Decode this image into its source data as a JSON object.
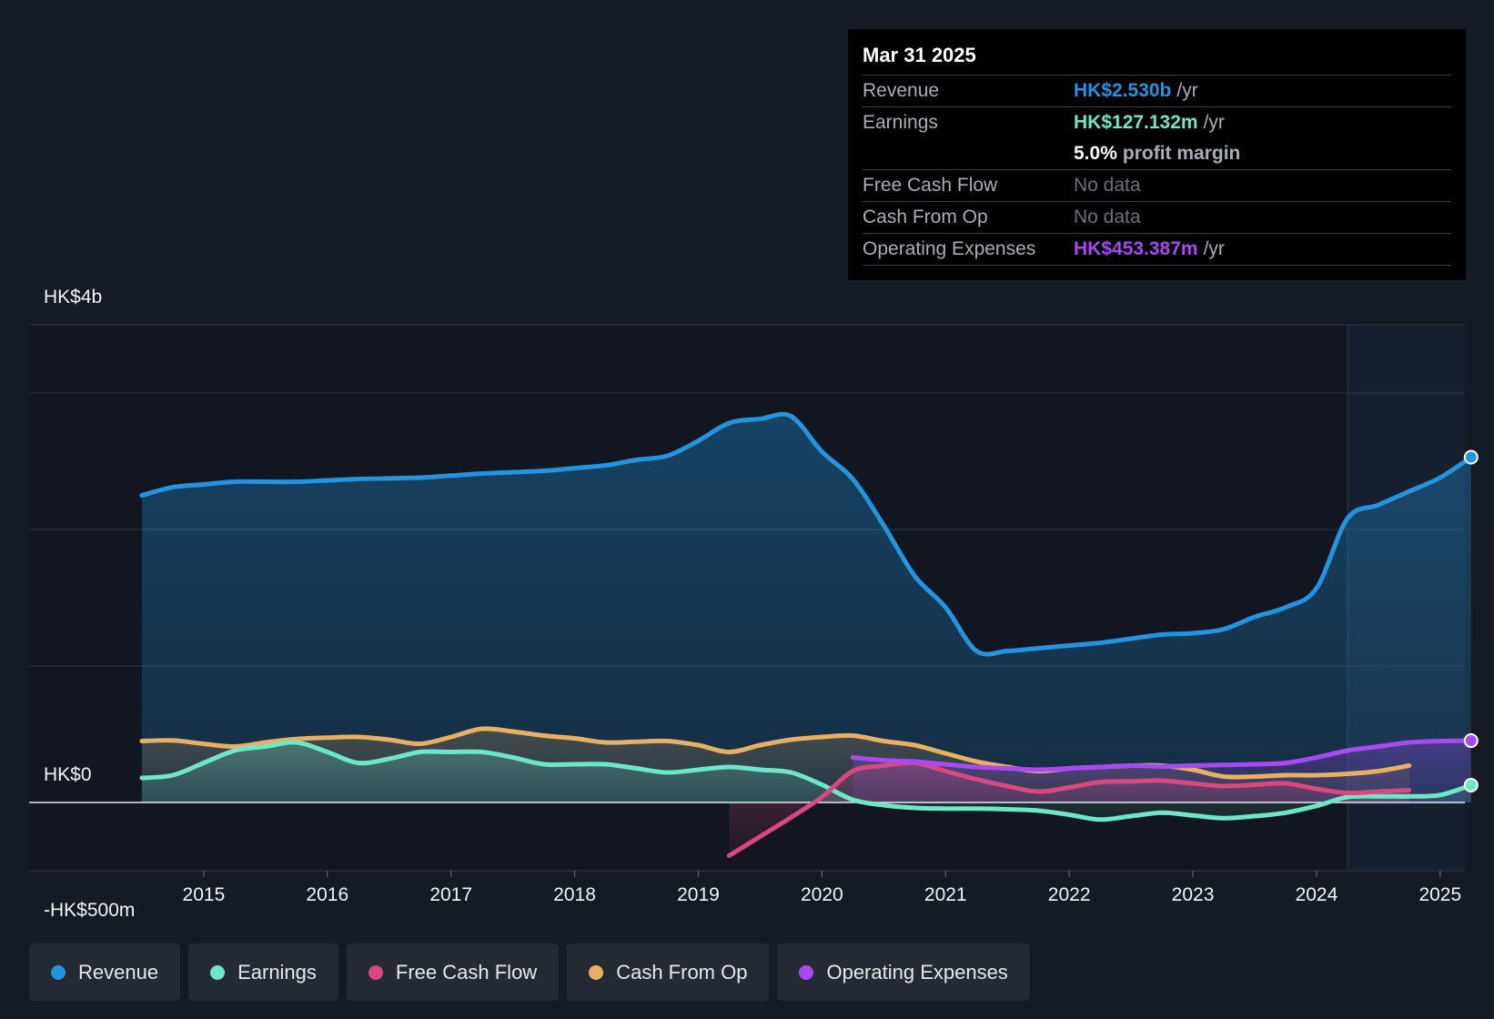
{
  "tooltip": {
    "date": "Mar 31 2025",
    "revenue_label": "Revenue",
    "revenue_value": "HK$2.530b",
    "earnings_label": "Earnings",
    "earnings_value": "HK$127.132m",
    "margin_value": "5.0%",
    "margin_label": "profit margin",
    "fcf_label": "Free Cash Flow",
    "fcf_value": "No data",
    "cfo_label": "Cash From Op",
    "cfo_value": "No data",
    "opex_label": "Operating Expenses",
    "opex_value": "HK$453.387m",
    "unit": "/yr"
  },
  "colors": {
    "background": "#151b24",
    "revenue": "#2394df",
    "earnings": "#6ee7c8",
    "fcf": "#d9497f",
    "cfo": "#e8b063",
    "opex": "#a949f5"
  },
  "legend": [
    {
      "label": "Revenue",
      "color": "#2394df"
    },
    {
      "label": "Earnings",
      "color": "#6ee7c8"
    },
    {
      "label": "Free Cash Flow",
      "color": "#d9497f"
    },
    {
      "label": "Cash From Op",
      "color": "#e8b063"
    },
    {
      "label": "Operating Expenses",
      "color": "#a949f5"
    }
  ],
  "chart_data": {
    "type": "line",
    "title": "",
    "xlabel": "",
    "ylabel": "",
    "ylim": [
      -500,
      3500
    ],
    "xlim": [
      2014.0,
      2025.2
    ],
    "y_labels": [
      {
        "value": 3500,
        "text": "HK$4b"
      },
      {
        "value": 0,
        "text": "HK$0"
      },
      {
        "value": -500,
        "text": "-HK$500m"
      }
    ],
    "x_ticks": [
      {
        "value": 2015,
        "text": "2015"
      },
      {
        "value": 2016,
        "text": "2016"
      },
      {
        "value": 2017,
        "text": "2017"
      },
      {
        "value": 2018,
        "text": "2018"
      },
      {
        "value": 2019,
        "text": "2019"
      },
      {
        "value": 2020,
        "text": "2020"
      },
      {
        "value": 2021,
        "text": "2021"
      },
      {
        "value": 2022,
        "text": "2022"
      },
      {
        "value": 2023,
        "text": "2023"
      },
      {
        "value": 2024,
        "text": "2024"
      },
      {
        "value": 2025,
        "text": "2025"
      }
    ],
    "gridlines": [
      3500,
      3000,
      2000,
      1000,
      -500
    ],
    "forecast_start": 2024.25,
    "series": [
      {
        "name": "Revenue",
        "key": "revenue",
        "points": [
          [
            2014.5,
            2250
          ],
          [
            2014.75,
            2310
          ],
          [
            2015.0,
            2330
          ],
          [
            2015.25,
            2350
          ],
          [
            2015.5,
            2350
          ],
          [
            2015.75,
            2350
          ],
          [
            2016.0,
            2360
          ],
          [
            2016.25,
            2370
          ],
          [
            2016.5,
            2375
          ],
          [
            2016.75,
            2380
          ],
          [
            2017.0,
            2395
          ],
          [
            2017.25,
            2410
          ],
          [
            2017.5,
            2420
          ],
          [
            2017.75,
            2430
          ],
          [
            2018.0,
            2450
          ],
          [
            2018.25,
            2470
          ],
          [
            2018.5,
            2510
          ],
          [
            2018.75,
            2540
          ],
          [
            2019.0,
            2650
          ],
          [
            2019.25,
            2780
          ],
          [
            2019.5,
            2810
          ],
          [
            2019.75,
            2830
          ],
          [
            2020.0,
            2570
          ],
          [
            2020.25,
            2370
          ],
          [
            2020.5,
            2030
          ],
          [
            2020.75,
            1660
          ],
          [
            2021.0,
            1430
          ],
          [
            2021.25,
            1110
          ],
          [
            2021.5,
            1110
          ],
          [
            2021.75,
            1130
          ],
          [
            2022.0,
            1150
          ],
          [
            2022.25,
            1170
          ],
          [
            2022.5,
            1200
          ],
          [
            2022.75,
            1230
          ],
          [
            2023.0,
            1240
          ],
          [
            2023.25,
            1270
          ],
          [
            2023.5,
            1360
          ],
          [
            2023.75,
            1430
          ],
          [
            2024.0,
            1570
          ],
          [
            2024.25,
            2080
          ],
          [
            2024.5,
            2180
          ],
          [
            2024.75,
            2280
          ],
          [
            2025.0,
            2380
          ],
          [
            2025.25,
            2530
          ]
        ]
      },
      {
        "name": "Earnings",
        "key": "earnings",
        "points": [
          [
            2014.5,
            180
          ],
          [
            2014.75,
            200
          ],
          [
            2015.0,
            290
          ],
          [
            2015.25,
            380
          ],
          [
            2015.5,
            410
          ],
          [
            2015.75,
            440
          ],
          [
            2016.0,
            370
          ],
          [
            2016.25,
            290
          ],
          [
            2016.5,
            320
          ],
          [
            2016.75,
            370
          ],
          [
            2017.0,
            370
          ],
          [
            2017.25,
            370
          ],
          [
            2017.5,
            330
          ],
          [
            2017.75,
            280
          ],
          [
            2018.0,
            280
          ],
          [
            2018.25,
            280
          ],
          [
            2018.5,
            250
          ],
          [
            2018.75,
            220
          ],
          [
            2019.0,
            240
          ],
          [
            2019.25,
            260
          ],
          [
            2019.5,
            240
          ],
          [
            2019.75,
            220
          ],
          [
            2020.0,
            130
          ],
          [
            2020.25,
            20
          ],
          [
            2020.5,
            -20
          ],
          [
            2020.75,
            -40
          ],
          [
            2021.0,
            -45
          ],
          [
            2021.25,
            -45
          ],
          [
            2021.5,
            -50
          ],
          [
            2021.75,
            -60
          ],
          [
            2022.0,
            -90
          ],
          [
            2022.25,
            -125
          ],
          [
            2022.5,
            -100
          ],
          [
            2022.75,
            -75
          ],
          [
            2023.0,
            -95
          ],
          [
            2023.25,
            -115
          ],
          [
            2023.5,
            -100
          ],
          [
            2023.75,
            -75
          ],
          [
            2024.0,
            -25
          ],
          [
            2024.25,
            40
          ],
          [
            2024.5,
            45
          ],
          [
            2024.75,
            45
          ],
          [
            2025.0,
            55
          ],
          [
            2025.25,
            127
          ]
        ]
      },
      {
        "name": "Free Cash Flow",
        "key": "fcf",
        "points": [
          [
            2019.25,
            -390
          ],
          [
            2019.5,
            -250
          ],
          [
            2019.75,
            -110
          ],
          [
            2020.0,
            40
          ],
          [
            2020.25,
            230
          ],
          [
            2020.5,
            270
          ],
          [
            2020.75,
            290
          ],
          [
            2021.0,
            230
          ],
          [
            2021.25,
            170
          ],
          [
            2021.5,
            120
          ],
          [
            2021.75,
            80
          ],
          [
            2022.0,
            110
          ],
          [
            2022.25,
            150
          ],
          [
            2022.5,
            155
          ],
          [
            2022.75,
            160
          ],
          [
            2023.0,
            140
          ],
          [
            2023.25,
            120
          ],
          [
            2023.5,
            130
          ],
          [
            2023.75,
            140
          ],
          [
            2024.0,
            100
          ],
          [
            2024.25,
            70
          ],
          [
            2024.5,
            80
          ],
          [
            2024.75,
            90
          ]
        ]
      },
      {
        "name": "Cash From Op",
        "key": "cfo",
        "points": [
          [
            2014.5,
            450
          ],
          [
            2014.75,
            455
          ],
          [
            2015.0,
            430
          ],
          [
            2015.25,
            410
          ],
          [
            2015.5,
            440
          ],
          [
            2015.75,
            465
          ],
          [
            2016.0,
            475
          ],
          [
            2016.25,
            480
          ],
          [
            2016.5,
            460
          ],
          [
            2016.75,
            430
          ],
          [
            2017.0,
            480
          ],
          [
            2017.25,
            540
          ],
          [
            2017.5,
            520
          ],
          [
            2017.75,
            490
          ],
          [
            2018.0,
            470
          ],
          [
            2018.25,
            440
          ],
          [
            2018.5,
            445
          ],
          [
            2018.75,
            450
          ],
          [
            2019.0,
            420
          ],
          [
            2019.25,
            370
          ],
          [
            2019.5,
            420
          ],
          [
            2019.75,
            460
          ],
          [
            2020.0,
            480
          ],
          [
            2020.25,
            490
          ],
          [
            2020.5,
            450
          ],
          [
            2020.75,
            420
          ],
          [
            2021.0,
            360
          ],
          [
            2021.25,
            300
          ],
          [
            2021.5,
            260
          ],
          [
            2021.75,
            230
          ],
          [
            2022.0,
            250
          ],
          [
            2022.25,
            260
          ],
          [
            2022.5,
            270
          ],
          [
            2022.75,
            270
          ],
          [
            2023.0,
            240
          ],
          [
            2023.25,
            190
          ],
          [
            2023.5,
            190
          ],
          [
            2023.75,
            200
          ],
          [
            2024.0,
            200
          ],
          [
            2024.25,
            210
          ],
          [
            2024.5,
            230
          ],
          [
            2024.75,
            270
          ]
        ]
      },
      {
        "name": "Operating Expenses",
        "key": "opex",
        "points": [
          [
            2020.25,
            330
          ],
          [
            2020.5,
            310
          ],
          [
            2020.75,
            300
          ],
          [
            2021.0,
            280
          ],
          [
            2021.25,
            260
          ],
          [
            2021.5,
            250
          ],
          [
            2021.75,
            240
          ],
          [
            2022.0,
            250
          ],
          [
            2022.25,
            260
          ],
          [
            2022.5,
            270
          ],
          [
            2022.75,
            265
          ],
          [
            2023.0,
            270
          ],
          [
            2023.25,
            275
          ],
          [
            2023.5,
            280
          ],
          [
            2023.75,
            290
          ],
          [
            2024.0,
            330
          ],
          [
            2024.25,
            380
          ],
          [
            2024.5,
            410
          ],
          [
            2024.75,
            440
          ],
          [
            2025.0,
            450
          ],
          [
            2025.25,
            453
          ]
        ]
      }
    ]
  }
}
